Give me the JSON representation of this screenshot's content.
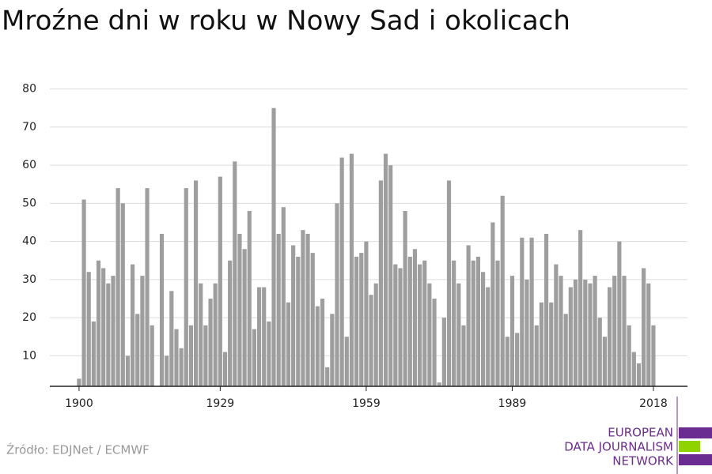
{
  "chart_data": {
    "type": "bar",
    "title": "Mroźne dni w roku w Nowy Sad i okolicach",
    "x": [
      1900,
      1901,
      1902,
      1903,
      1904,
      1905,
      1906,
      1907,
      1908,
      1909,
      1910,
      1911,
      1912,
      1913,
      1914,
      1915,
      1916,
      1917,
      1918,
      1919,
      1920,
      1921,
      1922,
      1923,
      1924,
      1925,
      1926,
      1927,
      1928,
      1929,
      1930,
      1931,
      1932,
      1933,
      1934,
      1935,
      1936,
      1937,
      1938,
      1939,
      1940,
      1941,
      1942,
      1943,
      1944,
      1945,
      1946,
      1947,
      1948,
      1949,
      1950,
      1951,
      1952,
      1953,
      1954,
      1955,
      1956,
      1957,
      1958,
      1959,
      1960,
      1961,
      1962,
      1963,
      1964,
      1965,
      1966,
      1967,
      1968,
      1969,
      1970,
      1971,
      1972,
      1973,
      1974,
      1975,
      1976,
      1977,
      1978,
      1979,
      1980,
      1981,
      1982,
      1983,
      1984,
      1985,
      1986,
      1987,
      1988,
      1989,
      1990,
      1991,
      1992,
      1993,
      1994,
      1995,
      1996,
      1997,
      1998,
      1999,
      2000,
      2001,
      2002,
      2003,
      2004,
      2005,
      2006,
      2007,
      2008,
      2009,
      2010,
      2011,
      2012,
      2013,
      2014,
      2015,
      2016,
      2017,
      2018
    ],
    "values": [
      4,
      51,
      32,
      19,
      35,
      33,
      29,
      31,
      54,
      50,
      10,
      34,
      21,
      31,
      54,
      18,
      null,
      42,
      10,
      27,
      17,
      12,
      54,
      18,
      56,
      29,
      18,
      25,
      29,
      57,
      11,
      35,
      61,
      42,
      38,
      48,
      17,
      28,
      28,
      19,
      75,
      42,
      49,
      24,
      39,
      36,
      43,
      42,
      37,
      23,
      25,
      7,
      21,
      50,
      62,
      15,
      63,
      36,
      37,
      40,
      26,
      29,
      56,
      63,
      60,
      34,
      33,
      48,
      36,
      38,
      34,
      35,
      29,
      25,
      3,
      20,
      56,
      35,
      29,
      18,
      39,
      35,
      36,
      32,
      28,
      45,
      35,
      52,
      15,
      31,
      16,
      41,
      30,
      41,
      18,
      24,
      42,
      24,
      34,
      31,
      21,
      28,
      30,
      43,
      30,
      29,
      31,
      20,
      15,
      28,
      31,
      40,
      31,
      18,
      11,
      8,
      33,
      29,
      18
    ],
    "color": "#9e9e9e",
    "xlim": [
      1894,
      2025
    ],
    "xticks": [
      1900,
      1929,
      1959,
      1989,
      2018
    ],
    "ylim": [
      2,
      82
    ],
    "yticks": [
      10,
      20,
      30,
      40,
      50,
      60,
      70,
      80
    ],
    "grid": true,
    "source": "Źródło: EDJNet / ECMWF",
    "logo": [
      "EUROPEAN",
      "DATA JOURNALISM",
      "NETWORK"
    ]
  }
}
